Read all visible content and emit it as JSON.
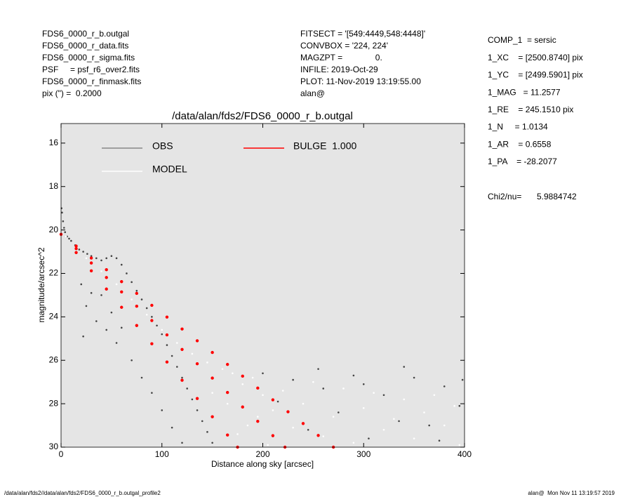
{
  "header": {
    "left": [
      "FDS6_0000_r_b.outgal",
      "FDS6_0000_r_data.fits",
      "FDS6_0000_r_sigma.fits",
      "PSF     = psf_r6_over2.fits",
      "FDS6_0000_r_finmask.fits",
      "pix (\") =  0.2000"
    ],
    "middle": [
      "FITSECT = '[549:4449,548:4448]'",
      "CONVBOX = '224, 224'",
      "MAGZPT =              0.",
      "INFILE: 2019-Oct-29",
      "PLOT: 11-Nov-2019 13:19:55.00",
      "alan@"
    ],
    "right": [
      "COMP_1  = sersic",
      "1_XC    = [2500.8740] pix",
      "1_YC    = [2499.5901] pix",
      "1_MAG   = 11.2577",
      "1_RE    = 245.1510 pix",
      "1_N     = 1.0134",
      "1_AR    = 0.6558",
      "1_PA    = -28.2077"
    ],
    "chi_label": "Chi2/nu=",
    "chi_value": "5.9884742"
  },
  "footer": {
    "left": "/data/alan/fds2//data/alan/fds2/FDS6_0000_r_b.outgal_profile2",
    "right": "alan@  Mon Nov 11 13:19:57 2019"
  },
  "chart_data": {
    "type": "scatter",
    "title": "/data/alan/fds2/FDS6_0000_r_b.outgal",
    "x_label": "Distance along sky [arcsec]",
    "y_label": "magnitude/arcsec^2",
    "xlim": [
      0,
      400
    ],
    "ylim": [
      30,
      15.1
    ],
    "xticks": [
      0,
      100,
      200,
      300,
      400
    ],
    "yticks": [
      16,
      18,
      20,
      22,
      24,
      26,
      28,
      30
    ],
    "background": "#e5e5e5",
    "series": [
      {
        "name": "OBS",
        "color": "#444444",
        "legend_color": "#888888",
        "x": [
          0.5,
          1,
          2,
          3,
          4,
          6,
          8,
          10,
          14,
          18,
          22,
          26,
          30,
          35,
          40,
          45,
          50,
          55,
          60,
          65,
          70,
          75,
          80,
          85,
          90,
          95,
          100,
          105,
          110,
          115,
          120,
          125,
          130,
          135,
          140,
          145,
          150,
          20,
          25,
          30,
          35,
          40,
          45,
          50,
          55,
          60,
          70,
          80,
          90,
          100,
          110,
          120,
          22,
          200,
          215,
          230,
          245,
          260,
          275,
          290,
          305,
          320,
          335,
          350,
          365,
          380,
          395,
          398,
          210,
          255,
          300,
          340,
          375
        ],
        "values": [
          19.0,
          19.2,
          19.6,
          19.9,
          20.1,
          20.3,
          20.4,
          20.5,
          20.7,
          20.9,
          21.0,
          21.1,
          21.2,
          21.3,
          21.4,
          21.3,
          21.2,
          21.3,
          21.6,
          22.0,
          22.4,
          22.8,
          23.2,
          23.6,
          24.0,
          24.4,
          24.8,
          25.3,
          25.8,
          26.3,
          26.8,
          27.3,
          27.8,
          28.3,
          28.8,
          29.3,
          29.8,
          22.5,
          23.5,
          22.9,
          24.2,
          23.0,
          24.6,
          23.8,
          25.2,
          24.5,
          26.0,
          26.8,
          27.5,
          28.3,
          29.1,
          29.8,
          24.9,
          26.6,
          27.9,
          26.9,
          29.2,
          27.3,
          28.4,
          26.7,
          29.6,
          27.6,
          28.8,
          26.8,
          29.0,
          27.2,
          28.1,
          26.9,
          29.5,
          26.4,
          27.1,
          26.3,
          29.7
        ]
      },
      {
        "name": "MODEL",
        "color": "#ffffff",
        "legend_color": "#ffffff",
        "x": [
          5,
          15,
          25,
          40,
          55,
          70,
          85,
          100,
          115,
          130,
          145,
          160,
          170,
          180,
          190,
          200,
          210,
          220,
          230,
          240,
          250,
          260,
          270,
          280,
          290,
          300,
          310,
          320,
          330,
          340,
          350,
          360,
          370,
          380,
          390,
          395,
          205,
          185,
          165,
          175,
          150,
          195
        ],
        "values": [
          20.3,
          20.8,
          21.3,
          21.9,
          22.5,
          23.2,
          23.9,
          24.6,
          25.2,
          25.7,
          26.1,
          26.4,
          26.6,
          27.1,
          26.8,
          27.6,
          28.3,
          27.4,
          29.1,
          28.0,
          27.0,
          29.5,
          28.6,
          27.3,
          29.8,
          28.2,
          27.5,
          29.2,
          28.7,
          27.8,
          29.6,
          28.4,
          27.6,
          29.0,
          28.1,
          29.9,
          29.9,
          29.0,
          28.0,
          29.4,
          27.5,
          28.6
        ]
      },
      {
        "name": "BULGE  1.000",
        "color": "#ff0000",
        "legend_color": "#ff0000",
        "x": [
          0,
          15,
          30,
          45,
          60,
          75,
          90,
          105,
          120,
          135,
          150,
          165,
          175,
          15,
          30,
          45,
          60,
          75,
          90,
          105,
          120,
          135,
          150,
          165,
          180,
          195,
          210,
          222,
          15,
          30,
          45,
          60,
          75,
          90,
          105,
          120,
          135,
          150,
          165,
          180,
          195,
          210,
          225,
          240,
          255,
          270
        ],
        "values": [
          20.2,
          21.04,
          21.88,
          22.72,
          23.56,
          24.4,
          25.24,
          26.08,
          26.92,
          27.76,
          28.6,
          29.44,
          30,
          20.86,
          21.52,
          22.19,
          22.85,
          23.51,
          24.17,
          24.83,
          25.5,
          26.16,
          26.82,
          27.48,
          28.15,
          28.81,
          29.47,
          30,
          20.74,
          21.29,
          21.83,
          22.38,
          22.92,
          23.47,
          24.01,
          24.56,
          25.1,
          25.64,
          26.19,
          26.73,
          27.28,
          27.82,
          28.37,
          28.91,
          29.46,
          30
        ]
      }
    ]
  }
}
